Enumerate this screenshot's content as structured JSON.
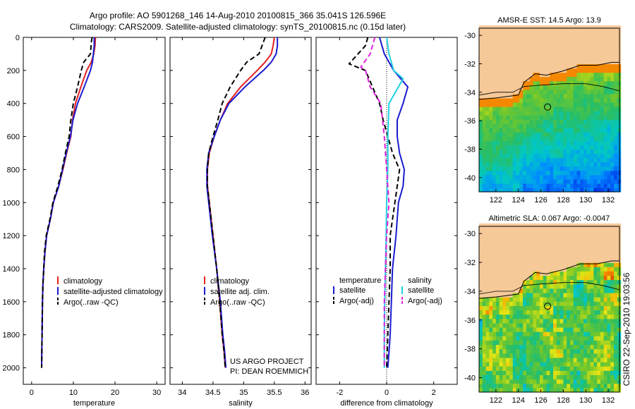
{
  "header": {
    "line1": "Argo profile: AO 5901268_146 14-Aug-2010 20100815_366 35.041S 126.596E",
    "line2": "Climatology: CARS2009. Satellite-adjusted climatology: synTS_20100815.nc (0.15d later)"
  },
  "depth_axis": {
    "ticks": [
      0,
      200,
      400,
      600,
      800,
      1000,
      1200,
      1400,
      1600,
      1800,
      2000
    ],
    "labels": [
      "0",
      "200",
      "400",
      "600",
      "800",
      "1000",
      "1200",
      "1400",
      "1600",
      "1800",
      "2000"
    ],
    "range": [
      0,
      2100
    ]
  },
  "colors": {
    "climatology": "#e02020",
    "satellite": "#1a1ad0",
    "argo": "#000000",
    "satellite_salinity": "#20d0e0",
    "argo_salinity": "#e020e0",
    "land": "#f6c998"
  },
  "chart_data": [
    {
      "type": "line",
      "title": "",
      "xlabel": "temperature",
      "ylabel": "",
      "xlim": [
        -2,
        32
      ],
      "ylim": [
        2100,
        0
      ],
      "xticks": [
        0,
        10,
        20,
        30
      ],
      "xtick_labels": [
        "0",
        "10",
        "20",
        "30"
      ],
      "legend": [
        "climatology",
        "satellite-adjusted climatology",
        "Argo(..raw -QC)"
      ],
      "legend_position": "lower-right",
      "series": [
        {
          "name": "climatology",
          "style": "solid",
          "color": "climatology",
          "x": [
            15.3,
            15.2,
            14.9,
            14.3,
            13.2,
            11.8,
            10.5,
            9.8,
            9.4,
            8.4,
            7.5,
            6.5,
            5.2,
            4.5,
            3.6,
            3.2,
            2.9,
            2.7,
            2.6,
            2.5,
            2.4
          ],
          "y": [
            0,
            50,
            100,
            150,
            200,
            300,
            400,
            500,
            600,
            700,
            800,
            900,
            1000,
            1100,
            1200,
            1300,
            1400,
            1500,
            1600,
            1800,
            2000
          ]
        },
        {
          "name": "satellite-adjusted climatology",
          "style": "solid",
          "color": "satellite",
          "x": [
            15.0,
            15.0,
            14.8,
            14.6,
            14.1,
            12.6,
            11.0,
            9.9,
            9.3,
            8.3,
            7.4,
            6.5,
            5.2,
            4.5,
            3.6,
            3.2,
            2.9,
            2.7,
            2.6,
            2.5,
            2.4
          ],
          "y": [
            0,
            50,
            100,
            150,
            200,
            300,
            400,
            500,
            600,
            700,
            800,
            900,
            1000,
            1100,
            1200,
            1300,
            1400,
            1500,
            1600,
            1800,
            2000
          ]
        },
        {
          "name": "Argo(..raw -QC)",
          "style": "dashed",
          "color": "argo",
          "x": [
            14.5,
            14.3,
            14.1,
            12.5,
            11.9,
            11.0,
            10.0,
            9.4,
            9.0,
            8.1,
            7.3,
            6.3,
            5.1,
            4.4,
            3.5,
            3.1,
            2.9,
            2.7,
            2.6,
            2.5,
            2.4
          ],
          "y": [
            0,
            30,
            100,
            150,
            200,
            300,
            400,
            500,
            600,
            700,
            800,
            900,
            1000,
            1100,
            1200,
            1300,
            1400,
            1500,
            1600,
            1800,
            2000
          ]
        }
      ]
    },
    {
      "type": "line",
      "title": "",
      "xlabel": "salinity",
      "ylabel": "",
      "xlim": [
        33.8,
        36.1
      ],
      "ylim": [
        2100,
        0
      ],
      "xticks": [
        34,
        34.5,
        35,
        35.5,
        36
      ],
      "xtick_labels": [
        "34",
        "34.5",
        "35",
        "35.5",
        "36"
      ],
      "legend": [
        "climatology",
        "satellite adj. clim.",
        "Argo(..raw -QC)"
      ],
      "legend_position": "lower-right",
      "annotation": [
        "US ARGO PROJECT",
        "PI: DEAN ROEMMICH"
      ],
      "series": [
        {
          "name": "climatology",
          "style": "solid",
          "color": "climatology",
          "x": [
            35.5,
            35.48,
            35.45,
            35.35,
            35.22,
            34.95,
            34.74,
            34.62,
            34.52,
            34.44,
            34.41,
            34.41,
            34.44,
            34.5,
            34.56,
            34.61,
            34.65,
            34.68,
            34.7
          ],
          "y": [
            0,
            50,
            100,
            150,
            200,
            300,
            400,
            500,
            600,
            700,
            800,
            900,
            1000,
            1200,
            1400,
            1600,
            1800,
            1900,
            2000
          ]
        },
        {
          "name": "satellite adj. clim.",
          "style": "solid",
          "color": "satellite",
          "x": [
            35.55,
            35.55,
            35.53,
            35.45,
            35.32,
            35.02,
            34.76,
            34.62,
            34.52,
            34.43,
            34.4,
            34.4,
            34.43,
            34.49,
            34.56,
            34.62,
            34.66,
            34.69,
            34.71
          ],
          "y": [
            0,
            50,
            100,
            150,
            200,
            300,
            400,
            500,
            600,
            700,
            800,
            900,
            1000,
            1200,
            1400,
            1600,
            1800,
            1900,
            2000
          ]
        },
        {
          "name": "Argo(..raw -QC)",
          "style": "dashed",
          "color": "argo",
          "x": [
            35.35,
            35.3,
            35.25,
            35.05,
            34.95,
            34.78,
            34.65,
            34.58,
            34.5,
            34.43,
            34.41,
            34.41,
            34.44,
            34.5,
            34.56,
            34.61,
            34.65,
            34.68,
            34.7
          ],
          "y": [
            0,
            50,
            100,
            150,
            200,
            300,
            400,
            500,
            600,
            700,
            800,
            900,
            1000,
            1200,
            1400,
            1600,
            1800,
            1900,
            2000
          ]
        }
      ]
    },
    {
      "type": "line",
      "title": "",
      "xlabel": "difference from climatology",
      "ylabel": "",
      "xlim": [
        -3,
        3
      ],
      "ylim": [
        2100,
        0
      ],
      "xticks": [
        -2,
        0,
        2
      ],
      "xtick_labels": [
        "-2",
        "0",
        "2"
      ],
      "legend_groups": [
        {
          "title": "temperature",
          "entries": [
            "satellite",
            "Argo(-adj)"
          ]
        },
        {
          "title": "salinity",
          "entries": [
            "satellite",
            "Argo(-adj)"
          ]
        }
      ],
      "legend_position": "lower-right",
      "series": [
        {
          "name": "temperature satellite",
          "style": "solid",
          "color": "satellite",
          "x": [
            -0.3,
            -0.2,
            -0.1,
            0.3,
            0.9,
            0.7,
            0.45,
            0.45,
            0.55,
            0.75,
            0.7,
            0.5,
            0.4,
            0.25,
            0.2,
            0.15,
            0.05
          ],
          "y": [
            0,
            50,
            100,
            200,
            300,
            400,
            500,
            600,
            700,
            800,
            900,
            1000,
            1200,
            1400,
            1600,
            1800,
            2000
          ]
        },
        {
          "name": "temperature Argo(-adj)",
          "style": "dashed",
          "color": "argo",
          "x": [
            -0.8,
            -0.9,
            -1.6,
            -0.9,
            -0.6,
            -0.3,
            -0.15,
            0.05,
            0.25,
            0.55,
            0.45,
            0.35,
            0.15,
            0.15,
            0.1,
            0.05,
            0.0
          ],
          "y": [
            0,
            50,
            160,
            200,
            300,
            400,
            500,
            600,
            700,
            800,
            900,
            1000,
            1200,
            1400,
            1600,
            1800,
            2000
          ]
        },
        {
          "name": "salinity satellite",
          "style": "solid",
          "color": "satellite_salinity",
          "x": [
            0.0,
            0.1,
            0.3,
            0.7,
            0.5,
            0.1,
            0.05,
            0.05,
            0.0,
            -0.02,
            -0.05,
            -0.08,
            -0.1,
            -0.1
          ],
          "y": [
            0,
            100,
            200,
            250,
            300,
            400,
            600,
            800,
            1000,
            1200,
            1400,
            1600,
            1800,
            2000
          ]
        },
        {
          "name": "salinity Argo(-adj)",
          "style": "dashed",
          "color": "argo_salinity",
          "x": [
            -0.5,
            -0.7,
            -1.1,
            -0.9,
            -0.7,
            -0.25,
            -0.1,
            0.0,
            0.1,
            0.0,
            -0.05,
            -0.1,
            -0.1
          ],
          "y": [
            0,
            100,
            180,
            200,
            300,
            400,
            600,
            800,
            1000,
            1200,
            1400,
            1600,
            2000
          ]
        }
      ]
    }
  ],
  "maps": [
    {
      "title": "AMSR-E SST: 14.5 Argo: 13.9",
      "lat_ticks": [
        "-30",
        "-32",
        "-34",
        "-36",
        "-38",
        "-40"
      ],
      "lon_ticks": [
        "122",
        "124",
        "126",
        "128",
        "130",
        "132"
      ],
      "lat_range": [
        -41,
        -29.5
      ],
      "lon_range": [
        120.5,
        133
      ],
      "float_position": {
        "lon": 126.6,
        "lat": -35.04
      },
      "land": {
        "lon": [
          120.5,
          122,
          124,
          124.5,
          125.5,
          126.5,
          128,
          129.5,
          131,
          132.3,
          133
        ],
        "lat": [
          -34.5,
          -34.4,
          -34.2,
          -33.3,
          -32.7,
          -32.8,
          -32.5,
          -32.1,
          -32.1,
          -31.9,
          -31.9
        ]
      },
      "contour": {
        "lon": [
          120.5,
          122,
          123.5,
          124.5,
          126,
          128,
          130,
          131.5,
          133
        ],
        "lat": [
          -34.2,
          -34,
          -34,
          -33.6,
          -33.5,
          -33.4,
          -33.4,
          -33.6,
          -33.9
        ]
      },
      "colorscale": "sst"
    },
    {
      "title": "Altimetric SLA: 0.067 Argo: -0.0047",
      "lat_ticks": [
        "-30",
        "-32",
        "-34",
        "-36",
        "-38",
        "-40"
      ],
      "lon_ticks": [
        "122",
        "124",
        "126",
        "128",
        "130",
        "132"
      ],
      "lat_range": [
        -41,
        -29.5
      ],
      "lon_range": [
        120.5,
        133
      ],
      "float_position": {
        "lon": 126.6,
        "lat": -35.04
      },
      "land": {
        "lon": [
          120.5,
          122,
          124,
          124.5,
          125.5,
          126.5,
          128,
          129.5,
          131,
          132.3,
          133
        ],
        "lat": [
          -34.5,
          -34.4,
          -34.2,
          -33.3,
          -32.7,
          -32.8,
          -32.5,
          -32.1,
          -32.1,
          -31.9,
          -31.9
        ]
      },
      "contour": {
        "lon": [
          120.5,
          122,
          123.5,
          124.5,
          126,
          128,
          130,
          131.5,
          133
        ],
        "lat": [
          -34.2,
          -34,
          -34,
          -33.6,
          -33.5,
          -33.4,
          -33.4,
          -33.6,
          -33.9
        ]
      },
      "colorscale": "sla"
    }
  ],
  "footer": {
    "credit": "CSIRO 22-Sep-2010 19:03:56"
  }
}
